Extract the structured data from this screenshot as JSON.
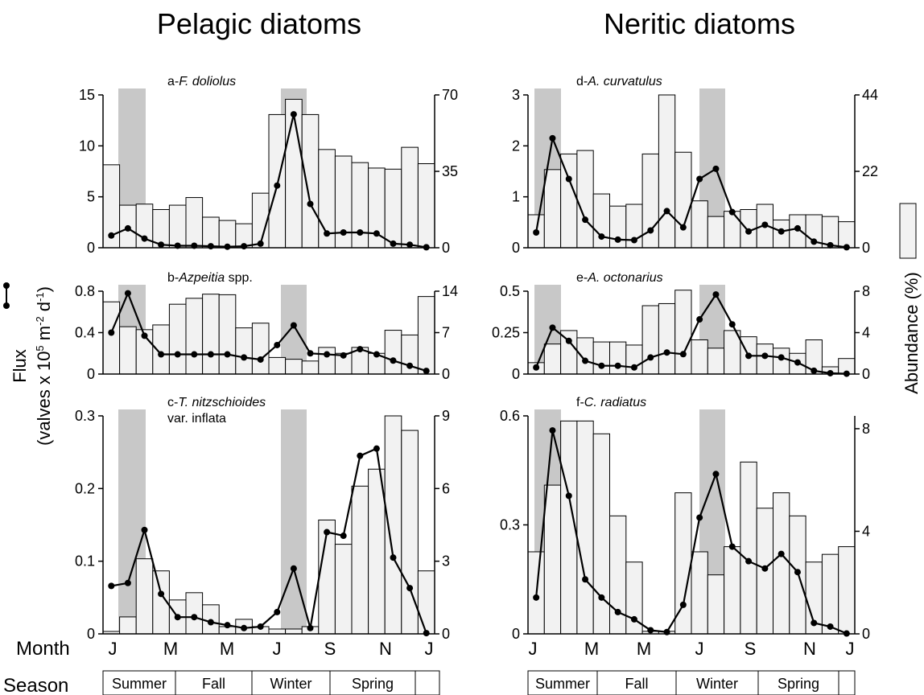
{
  "headings": {
    "pelagic": "Pelagic diatoms",
    "neritic": "Neritic diatoms"
  },
  "axis": {
    "left_label_1": "Flux",
    "left_label_2": "(valves x 10",
    "left_label_sup1": "5",
    "left_label_3": " m",
    "left_label_sup2": "-2",
    "left_label_4": " d",
    "left_label_sup3": "-1",
    "left_label_5": ")",
    "right_label": "Abundance (%)"
  },
  "rows": {
    "month": "Month",
    "season": "Season"
  },
  "months": [
    "J",
    "M",
    "M",
    "J",
    "S",
    "N",
    "J"
  ],
  "seasons": [
    "Summer",
    "Fall",
    "Winter",
    "Spring",
    ""
  ],
  "colors": {
    "bar_fill": "#f2f2f2",
    "shade": "#c8c8c8",
    "line": "#000000"
  },
  "chart_data": [
    {
      "type": "bar+line",
      "label_prefix": "a-",
      "label_italic": "F. doliolus",
      "label_suffix": "",
      "label_line2": "",
      "ylim": [
        0,
        15
      ],
      "yticks": [
        "0",
        "5",
        "10",
        "15"
      ],
      "y2lim": [
        0,
        70
      ],
      "y2ticks": [
        "0",
        "35",
        "70"
      ],
      "abundance": [
        38,
        19.5,
        20,
        17.5,
        19.5,
        23,
        14,
        12.5,
        11,
        25,
        61,
        68,
        61,
        45,
        42,
        39,
        36.5,
        36,
        46,
        38.5
      ],
      "flux": [
        1.2,
        1.9,
        0.9,
        0.3,
        0.2,
        0.2,
        0.15,
        0.1,
        0.15,
        0.4,
        6.1,
        13.1,
        4.3,
        1.4,
        1.5,
        1.5,
        1.4,
        0.4,
        0.3,
        0.05
      ]
    },
    {
      "type": "bar+line",
      "label_prefix": "b-",
      "label_italic": "Azpeitia",
      "label_suffix": " spp.",
      "label_line2": "",
      "ylim": [
        0,
        0.8
      ],
      "yticks": [
        "0",
        "0.4",
        "0.8"
      ],
      "y2lim": [
        0,
        14
      ],
      "y2ticks": [
        "0",
        "7",
        "14"
      ],
      "abundance": [
        12.2,
        8,
        7.5,
        8.3,
        11.8,
        12.8,
        13.5,
        13.4,
        7.8,
        8.6,
        2.8,
        2.5,
        2.2,
        4.5,
        3.5,
        4.5,
        3.5,
        7.4,
        6.6,
        13.1
      ],
      "flux": [
        0.4,
        0.78,
        0.37,
        0.19,
        0.19,
        0.19,
        0.19,
        0.19,
        0.16,
        0.14,
        0.28,
        0.47,
        0.2,
        0.19,
        0.18,
        0.24,
        0.19,
        0.13,
        0.08,
        0.03
      ]
    },
    {
      "type": "bar+line",
      "label_prefix": "c-",
      "label_italic": "T. nitzschioides",
      "label_suffix": "",
      "label_line2": "var. inflata",
      "ylim": [
        0,
        0.3
      ],
      "yticks": [
        "0",
        "0.1",
        "0.2",
        "0.3"
      ],
      "y2lim": [
        0,
        9
      ],
      "y2ticks": [
        "0",
        "3",
        "6",
        "9"
      ],
      "abundance": [
        0.1,
        0.7,
        3.1,
        2.6,
        1.4,
        1.7,
        1.2,
        0.3,
        0.6,
        0.3,
        0.2,
        0.2,
        0.3,
        4.7,
        3.7,
        6.1,
        6.8,
        9,
        8.4,
        2.6
      ],
      "flux": [
        0.066,
        0.07,
        0.143,
        0.055,
        0.023,
        0.023,
        0.016,
        0.012,
        0.008,
        0.01,
        0.03,
        0.09,
        0.008,
        0.14,
        0.135,
        0.245,
        0.255,
        0.105,
        0.063,
        0.001
      ]
    },
    {
      "type": "bar+line",
      "label_prefix": "d-",
      "label_italic": "A. curvatulus",
      "label_suffix": "",
      "label_line2": "",
      "ylim": [
        0,
        3
      ],
      "yticks": [
        "0",
        "1",
        "2",
        "3"
      ],
      "y2lim": [
        0,
        44
      ],
      "y2ticks": [
        "0",
        "22",
        "44"
      ],
      "abundance": [
        9.5,
        22.5,
        27,
        28,
        15.5,
        12,
        12.5,
        27,
        44,
        27.5,
        13.5,
        9,
        10.5,
        11,
        12.5,
        8,
        9.5,
        9.5,
        9,
        7.5
      ],
      "flux": [
        0.3,
        2.15,
        1.35,
        0.55,
        0.22,
        0.16,
        0.15,
        0.34,
        0.72,
        0.4,
        1.35,
        1.55,
        0.7,
        0.32,
        0.45,
        0.32,
        0.38,
        0.12,
        0.05,
        0.01
      ]
    },
    {
      "type": "bar+line",
      "label_prefix": "e-",
      "label_italic": "A. octonarius",
      "label_suffix": "",
      "label_line2": "",
      "ylim": [
        0,
        0.5
      ],
      "yticks": [
        "0",
        "0.25",
        "0.5"
      ],
      "y2lim": [
        0,
        8
      ],
      "y2ticks": [
        "0",
        "4",
        "8"
      ],
      "abundance": [
        1.1,
        2.9,
        4.2,
        3.5,
        3.1,
        3.1,
        2.8,
        6.6,
        6.8,
        8.1,
        3.3,
        2.5,
        4.2,
        3.6,
        2.9,
        2.5,
        2,
        3.3,
        0.7,
        1.5
      ],
      "flux": [
        0.04,
        0.28,
        0.2,
        0.08,
        0.05,
        0.05,
        0.04,
        0.1,
        0.13,
        0.12,
        0.33,
        0.48,
        0.3,
        0.11,
        0.11,
        0.1,
        0.07,
        0.02,
        0.005,
        0.002
      ],
      "flux_scale_max": 0.5
    },
    {
      "type": "bar+line",
      "label_prefix": "f-",
      "label_italic": "C. radiatus",
      "label_suffix": "",
      "label_line2": "",
      "ylim": [
        0,
        0.6
      ],
      "yticks": [
        "0",
        "0.3",
        "0.6"
      ],
      "y2lim": [
        0,
        8.5
      ],
      "y2ticks": [
        "0",
        "4",
        "8"
      ],
      "abundance": [
        3.2,
        5.8,
        8.3,
        8.3,
        7.8,
        4.6,
        2.8,
        0.1,
        0.1,
        5.5,
        3.2,
        2.3,
        3.4,
        6.7,
        4.9,
        5.5,
        4.6,
        2.8,
        3.1,
        3.4
      ],
      "flux": [
        0.1,
        0.56,
        0.38,
        0.15,
        0.1,
        0.06,
        0.04,
        0.01,
        0.005,
        0.08,
        0.32,
        0.44,
        0.24,
        0.2,
        0.18,
        0.22,
        0.17,
        0.03,
        0.02,
        0.001
      ]
    }
  ]
}
